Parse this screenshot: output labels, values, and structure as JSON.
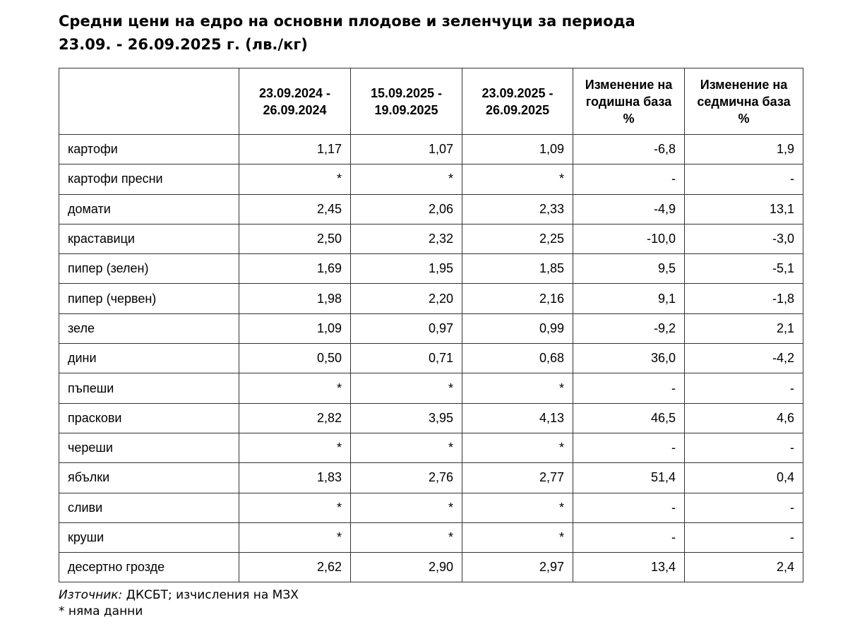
{
  "header": {
    "title_lines": [
      "Средни цени на едро на основни плодове и зеленчуци за периода",
      "23.09. - 26.09.2025 г. (лв./кг)"
    ]
  },
  "table": {
    "columns": [
      [
        "23.09.2024 -",
        "26.09.2024"
      ],
      [
        "15.09.2025 -",
        "19.09.2025"
      ],
      [
        "23.09.2025 -",
        "26.09.2025"
      ],
      [
        "Изменение на",
        "годишна база",
        "%"
      ],
      [
        "Изменение на",
        "седмична база",
        "%"
      ]
    ],
    "rows": [
      [
        "картофи",
        "1,17",
        "1,07",
        "1,09",
        "-6,8",
        "1,9"
      ],
      [
        "картофи пресни",
        "*",
        "*",
        "*",
        "-",
        "-"
      ],
      [
        "домати",
        "2,45",
        "2,06",
        "2,33",
        "-4,9",
        "13,1"
      ],
      [
        "краставици",
        "2,50",
        "2,32",
        "2,25",
        "-10,0",
        "-3,0"
      ],
      [
        "пипер (зелен)",
        "1,69",
        "1,95",
        "1,85",
        "9,5",
        "-5,1"
      ],
      [
        "пипер (червен)",
        "1,98",
        "2,20",
        "2,16",
        "9,1",
        "-1,8"
      ],
      [
        "зеле",
        "1,09",
        "0,97",
        "0,99",
        "-9,2",
        "2,1"
      ],
      [
        "дини",
        "0,50",
        "0,71",
        "0,68",
        "36,0",
        "-4,2"
      ],
      [
        "пъпеши",
        "*",
        "*",
        "*",
        "-",
        "-"
      ],
      [
        "праскови",
        "2,82",
        "3,95",
        "4,13",
        "46,5",
        "4,6"
      ],
      [
        "череши",
        "*",
        "*",
        "*",
        "-",
        "-"
      ],
      [
        "ябълки",
        "1,83",
        "2,76",
        "2,77",
        "51,4",
        "0,4"
      ],
      [
        "сливи",
        "*",
        "*",
        "*",
        "-",
        "-"
      ],
      [
        "круши",
        "*",
        "*",
        "*",
        "-",
        "-"
      ],
      [
        "десертно грозде",
        "2,62",
        "2,90",
        "2,97",
        "13,4",
        "2,4"
      ]
    ]
  },
  "footer": {
    "source_label": "Източник:",
    "source_text": "ДКСБТ; изчисления на МЗХ",
    "note": "* няма данни"
  }
}
